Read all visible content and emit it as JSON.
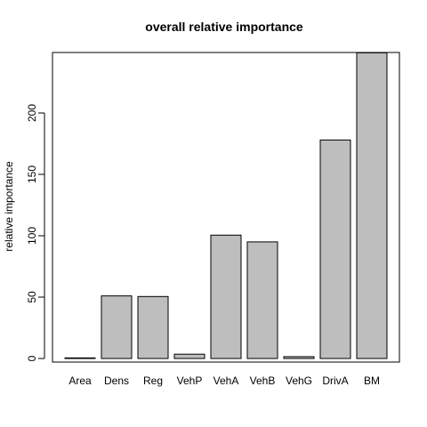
{
  "chart_data": {
    "type": "bar",
    "title": "overall relative importance",
    "xlabel": "",
    "ylabel": "relative importance",
    "categories": [
      "Area",
      "Dens",
      "Reg",
      "VehP",
      "VehA",
      "VehB",
      "VehG",
      "DrivA",
      "BM"
    ],
    "values": [
      0.5,
      51,
      50.5,
      3.5,
      100.5,
      95,
      1.5,
      178,
      249
    ],
    "yticks": [
      0,
      50,
      100,
      150,
      200
    ],
    "ylim": [
      0,
      249
    ],
    "grid": false,
    "colors": {
      "bar_fill": "#bebebe",
      "bar_stroke": "#000000"
    }
  }
}
